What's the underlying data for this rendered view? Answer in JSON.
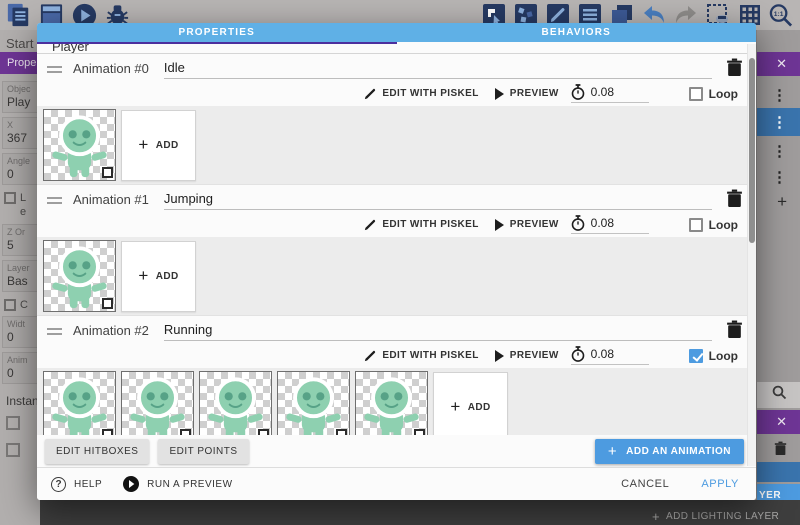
{
  "toolbar": {
    "left_icons": [
      {
        "name": "project-manager-icon"
      },
      {
        "name": "open-window-icon"
      },
      {
        "name": "preview-play-icon"
      },
      {
        "name": "debug-icon"
      }
    ],
    "right_icons": [
      {
        "name": "add-object-icon"
      },
      {
        "name": "particles-icon"
      },
      {
        "name": "edit-scene-icon"
      },
      {
        "name": "events-sheet-icon"
      },
      {
        "name": "layers-icon"
      },
      {
        "name": "undo-icon"
      },
      {
        "name": "redo-icon"
      },
      {
        "name": "mask-grid-icon"
      },
      {
        "name": "grid-icon"
      },
      {
        "name": "zoom-1-1-icon"
      }
    ]
  },
  "left_panel": {
    "scene_tab_label": "Start S",
    "panel_header": "Prope",
    "items": [
      {
        "type": "field",
        "label": "Objec",
        "value": "Play"
      },
      {
        "type": "field",
        "label": "X",
        "value": "367"
      },
      {
        "type": "field",
        "label": "Angle",
        "value": "0"
      },
      {
        "type": "check",
        "label": "L\ne"
      },
      {
        "type": "field",
        "label": "Z Or",
        "value": "5"
      },
      {
        "type": "field",
        "label": "Layer",
        "value": "Bas"
      },
      {
        "type": "check",
        "label": "C"
      },
      {
        "type": "field",
        "label": "Widt",
        "value": "0"
      },
      {
        "type": "field",
        "label": "Anim",
        "value": "0"
      },
      {
        "type": "text",
        "label": "Instan"
      }
    ]
  },
  "right_panel": {
    "close_glyph": "✕",
    "kebab_glyph": "⋮",
    "plus_glyph": "+",
    "layer_button_clipped": "YER",
    "add_lighting_layer_label": "ADD LIGHTING LAYER"
  },
  "dialog": {
    "tabs": {
      "properties": "PROPERTIES",
      "behaviors": "BEHAVIORS"
    },
    "object_name": "Player",
    "actions": {
      "edit_with_piskel": "EDIT WITH PISKEL",
      "preview": "PREVIEW",
      "loop_label": "Loop",
      "add_frame": "ADD"
    },
    "animations": [
      {
        "title": "Animation #0",
        "name": "Idle",
        "time_between_frames": "0.08",
        "loop": false,
        "frames": 1
      },
      {
        "title": "Animation #1",
        "name": "Jumping",
        "time_between_frames": "0.08",
        "loop": false,
        "frames": 1
      },
      {
        "title": "Animation #2",
        "name": "Running",
        "time_between_frames": "0.08",
        "loop": true,
        "frames": 5
      }
    ],
    "footer": {
      "edit_hitboxes": "EDIT HITBOXES",
      "edit_points": "EDIT POINTS",
      "add_animation": "ADD AN ANIMATION",
      "help": "HELP",
      "run_a_preview": "RUN A PREVIEW",
      "cancel": "CANCEL",
      "apply": "APPLY"
    }
  },
  "colors": {
    "tab_bar_blue": "#5fb0e6",
    "tab_indicator_purple": "#4c2f9e",
    "accent_blue": "#4d9be0",
    "panel_purple": "#6e3595",
    "selected_row_blue": "#3a74ad",
    "sprite_green": "#8ed0b0",
    "sprite_feature_green": "#57a287"
  }
}
